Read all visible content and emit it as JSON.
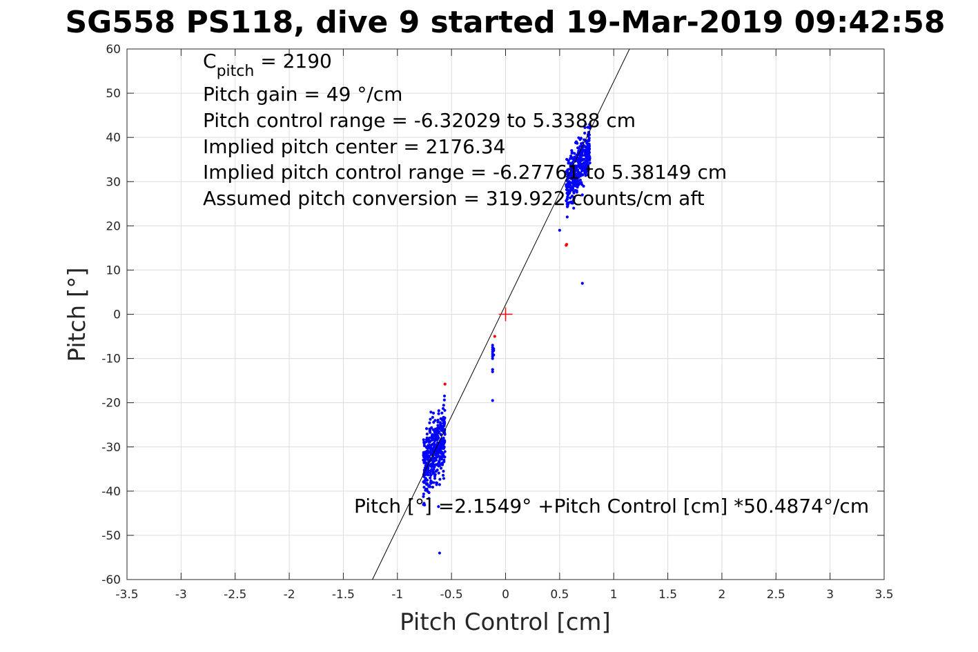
{
  "chart_data": {
    "type": "scatter",
    "title": "SG558 PS118, dive 9 started 19-Mar-2019 09:42:58",
    "xlabel": "Pitch Control [cm]",
    "ylabel": "Pitch [°]",
    "xlim": [
      -3.5,
      3.5
    ],
    "ylim": [
      -60,
      60
    ],
    "xticks": [
      -3.5,
      -3,
      -2.5,
      -2,
      -1.5,
      -1,
      -0.5,
      0,
      0.5,
      1,
      1.5,
      2,
      2.5,
      3,
      3.5
    ],
    "xtick_labels": [
      "-3.5",
      "-3",
      "-2.5",
      "-2",
      "-1.5",
      "-1",
      "-0.5",
      "0",
      "0.5",
      "1",
      "1.5",
      "2",
      "2.5",
      "3",
      "3.5"
    ],
    "yticks": [
      -60,
      -50,
      -40,
      -30,
      -20,
      -10,
      0,
      10,
      20,
      30,
      40,
      50,
      60
    ],
    "ytick_labels": [
      "-60",
      "-50",
      "-40",
      "-30",
      "-20",
      "-10",
      "0",
      "10",
      "20",
      "30",
      "40",
      "50",
      "60"
    ],
    "grid": true,
    "annotations": {
      "cpitch_symbol": "C",
      "cpitch_subscript": "pitch",
      "cpitch_value": " = 2190",
      "pitch_gain": "Pitch gain = 49 °/cm",
      "control_range": "Pitch control range = -6.32029 to 5.3388 cm",
      "pitch_center": "Implied pitch center = 2176.34",
      "implied_range": "Implied pitch control range = -6.27761 to 5.38149 cm",
      "conversion": "Assumed pitch conversion = 319.922 counts/cm aft",
      "fit_equation": "Pitch [°] =2.1549° +Pitch Control [cm] *50.4874°/cm"
    },
    "fit_line": {
      "intercept": 2.1549,
      "slope": 50.4874,
      "color": "#000000"
    },
    "center_marker": {
      "x": 0,
      "y": 0,
      "color": "#ff0000"
    },
    "series": [
      {
        "color": "#0000ff",
        "clusters": [
          {
            "x_range": [
              -0.76,
              -0.56
            ],
            "y_center": -31,
            "y_spread": 7,
            "slope": 40,
            "n": 420
          },
          {
            "x_range": [
              0.56,
              0.78
            ],
            "y_center": 33,
            "y_spread": 5,
            "slope": 45,
            "n": 380
          }
        ],
        "points": [
          [
            -0.12,
            -7
          ],
          [
            -0.12,
            -7.5
          ],
          [
            -0.12,
            -8
          ],
          [
            -0.12,
            -8.5
          ],
          [
            -0.12,
            -9
          ],
          [
            -0.12,
            -9.5
          ],
          [
            -0.12,
            -10
          ],
          [
            -0.11,
            -8.2
          ],
          [
            -0.11,
            -9.2
          ],
          [
            -0.11,
            -7.8
          ],
          [
            -0.12,
            -12.5
          ],
          [
            -0.12,
            -13
          ],
          [
            -0.12,
            -19.5
          ],
          [
            0.71,
            7
          ],
          [
            0.5,
            19
          ],
          [
            -0.61,
            -54
          ],
          [
            -0.62,
            -43.5
          ],
          [
            -0.73,
            -38.5
          ],
          [
            0.57,
            22
          ],
          [
            0.58,
            25
          ],
          [
            0.74,
            43
          ],
          [
            0.71,
            27
          ],
          [
            0.63,
            24
          ]
        ]
      },
      {
        "color": "#ff0000",
        "points": [
          [
            0.56,
            15.6
          ],
          [
            0.565,
            15.8
          ],
          [
            -0.1,
            -5
          ],
          [
            -0.56,
            -15.8
          ]
        ]
      }
    ]
  }
}
